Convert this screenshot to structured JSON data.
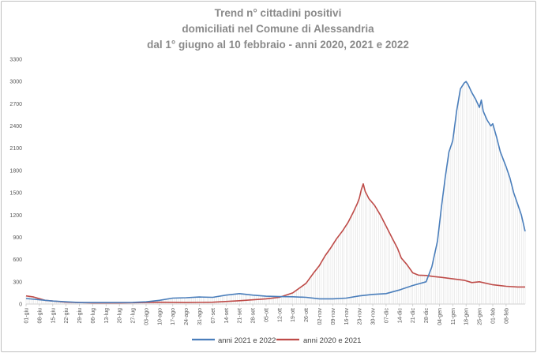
{
  "chart_data": {
    "type": "line",
    "title_lines": [
      "Trend n° cittadini positivi",
      "domiciliati nel Comune di Alessandria",
      "dal 1° giugno al 10 febbraio - anni 2020, 2021 e 2022"
    ],
    "xlabel": "",
    "ylabel": "",
    "ylim": [
      0,
      3300
    ],
    "y_ticks": [
      0,
      300,
      600,
      900,
      1200,
      1500,
      1800,
      2100,
      2400,
      2700,
      3000,
      3300
    ],
    "x_tick_labels": [
      "01-giu",
      "08-giu",
      "15-giu",
      "22-giu",
      "29-giu",
      "06-lug",
      "13-lug",
      "20-lug",
      "27-lug",
      "03-ago",
      "10-ago",
      "17-ago",
      "24-ago",
      "31-ago",
      "07-set",
      "14-set",
      "21-set",
      "28-set",
      "05-ott",
      "12-ott",
      "19-ott",
      "26-ott",
      "02-nov",
      "09-nov",
      "16-nov",
      "23-nov",
      "30-nov",
      "07-dic",
      "14-dic",
      "21-dic",
      "28-dic",
      "04-gen",
      "11-gen",
      "18-gen",
      "25-gen",
      "01-feb",
      "08-feb"
    ],
    "grid": false,
    "legend_position": "bottom",
    "series": [
      {
        "name": "anni 2021 e 2022",
        "color": "#4a7ebb",
        "points": [
          [
            0,
            75
          ],
          [
            14,
            40
          ],
          [
            28,
            20
          ],
          [
            42,
            20
          ],
          [
            56,
            22
          ],
          [
            63,
            30
          ],
          [
            70,
            50
          ],
          [
            77,
            80
          ],
          [
            84,
            85
          ],
          [
            91,
            95
          ],
          [
            98,
            90
          ],
          [
            105,
            120
          ],
          [
            112,
            140
          ],
          [
            119,
            120
          ],
          [
            126,
            105
          ],
          [
            133,
            100
          ],
          [
            140,
            98
          ],
          [
            147,
            90
          ],
          [
            154,
            70
          ],
          [
            161,
            70
          ],
          [
            168,
            80
          ],
          [
            175,
            110
          ],
          [
            182,
            130
          ],
          [
            189,
            140
          ],
          [
            196,
            190
          ],
          [
            203,
            250
          ],
          [
            210,
            300
          ],
          [
            213,
            500
          ],
          [
            216,
            850
          ],
          [
            218,
            1300
          ],
          [
            220,
            1700
          ],
          [
            222,
            2050
          ],
          [
            224,
            2200
          ],
          [
            226,
            2600
          ],
          [
            228,
            2900
          ],
          [
            230,
            2980
          ],
          [
            231,
            3000
          ],
          [
            232,
            2960
          ],
          [
            234,
            2850
          ],
          [
            236,
            2760
          ],
          [
            238,
            2650
          ],
          [
            239,
            2750
          ],
          [
            240,
            2600
          ],
          [
            242,
            2480
          ],
          [
            244,
            2400
          ],
          [
            245,
            2430
          ],
          [
            247,
            2250
          ],
          [
            249,
            2050
          ],
          [
            252,
            1850
          ],
          [
            254,
            1700
          ],
          [
            256,
            1500
          ],
          [
            258,
            1350
          ],
          [
            260,
            1200
          ],
          [
            262,
            980
          ]
        ]
      },
      {
        "name": "anni 2020 e 2021",
        "color": "#be4b48",
        "points": [
          [
            0,
            110
          ],
          [
            4,
            95
          ],
          [
            10,
            50
          ],
          [
            21,
            25
          ],
          [
            35,
            15
          ],
          [
            49,
            15
          ],
          [
            63,
            20
          ],
          [
            70,
            25
          ],
          [
            84,
            20
          ],
          [
            98,
            25
          ],
          [
            112,
            45
          ],
          [
            126,
            70
          ],
          [
            133,
            90
          ],
          [
            140,
            150
          ],
          [
            147,
            280
          ],
          [
            151,
            420
          ],
          [
            154,
            520
          ],
          [
            157,
            650
          ],
          [
            160,
            760
          ],
          [
            163,
            880
          ],
          [
            166,
            980
          ],
          [
            169,
            1100
          ],
          [
            172,
            1250
          ],
          [
            174,
            1360
          ],
          [
            175,
            1430
          ],
          [
            176,
            1540
          ],
          [
            177,
            1620
          ],
          [
            178,
            1520
          ],
          [
            180,
            1420
          ],
          [
            183,
            1330
          ],
          [
            186,
            1200
          ],
          [
            189,
            1050
          ],
          [
            192,
            900
          ],
          [
            195,
            750
          ],
          [
            197,
            620
          ],
          [
            200,
            530
          ],
          [
            203,
            420
          ],
          [
            206,
            390
          ],
          [
            210,
            385
          ],
          [
            214,
            370
          ],
          [
            218,
            360
          ],
          [
            224,
            340
          ],
          [
            230,
            320
          ],
          [
            234,
            290
          ],
          [
            238,
            300
          ],
          [
            245,
            260
          ],
          [
            252,
            240
          ],
          [
            258,
            230
          ],
          [
            262,
            230
          ]
        ]
      }
    ],
    "x_domain_days": [
      0,
      262
    ]
  }
}
